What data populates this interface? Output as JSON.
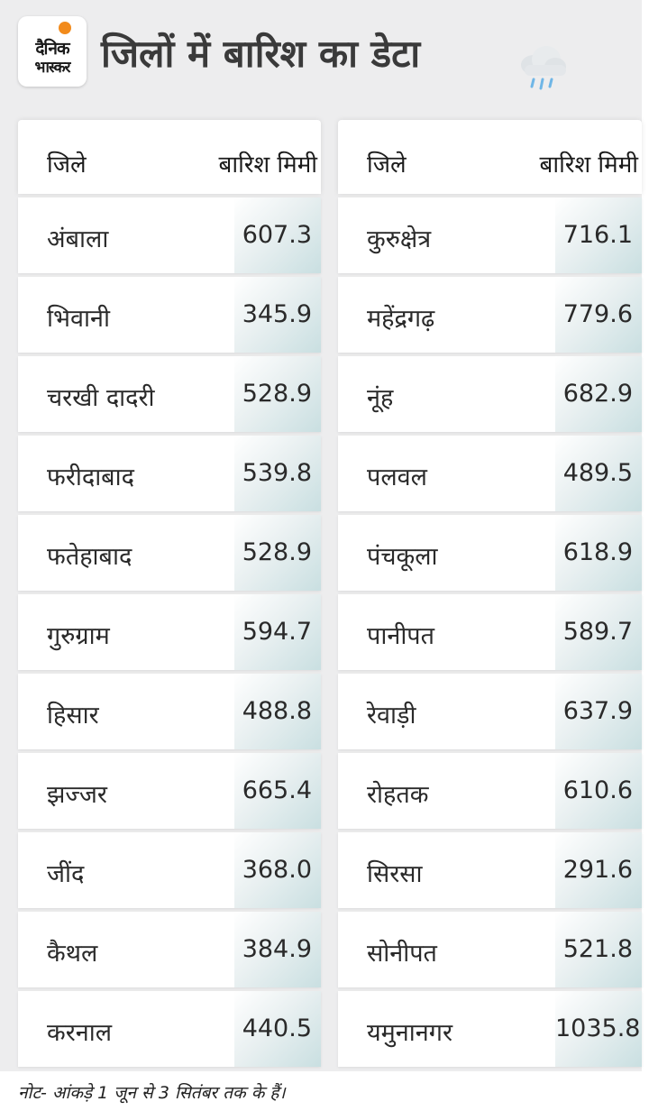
{
  "header": {
    "logo_line1": "दैनिक",
    "logo_line2": "भास्कर",
    "title": "जिलों में बारिश का डेटा",
    "icon": "rain-cloud-icon"
  },
  "colors": {
    "background": "#ededee",
    "row": "#ffffff",
    "value_cell_gradient_end": "#c9dfe1",
    "logo_sun": "#f28b1c"
  },
  "table": {
    "columns": [
      "जिले",
      "बारिश मिमी"
    ],
    "left": [
      {
        "district": "अंबाला",
        "rain": "607.3"
      },
      {
        "district": "भिवानी",
        "rain": "345.9"
      },
      {
        "district": "चरखी दादरी",
        "rain": "528.9"
      },
      {
        "district": "फरीदाबाद",
        "rain": "539.8"
      },
      {
        "district": "फतेहाबाद",
        "rain": "528.9"
      },
      {
        "district": "गुरुग्राम",
        "rain": "594.7"
      },
      {
        "district": "हिसार",
        "rain": "488.8"
      },
      {
        "district": "झज्जर",
        "rain": "665.4"
      },
      {
        "district": "जींद",
        "rain": "368.0"
      },
      {
        "district": "कैथल",
        "rain": "384.9"
      },
      {
        "district": "करनाल",
        "rain": "440.5"
      }
    ],
    "right": [
      {
        "district": "कुरुक्षेत्र",
        "rain": "716.1"
      },
      {
        "district": "महेंद्रगढ़",
        "rain": "779.6"
      },
      {
        "district": "नूंह",
        "rain": "682.9"
      },
      {
        "district": "पलवल",
        "rain": "489.5"
      },
      {
        "district": "पंचकूला",
        "rain": "618.9"
      },
      {
        "district": "पानीपत",
        "rain": "589.7"
      },
      {
        "district": "रेवाड़ी",
        "rain": "637.9"
      },
      {
        "district": "रोहतक",
        "rain": "610.6"
      },
      {
        "district": "सिरसा",
        "rain": "291.6"
      },
      {
        "district": "सोनीपत",
        "rain": "521.8"
      },
      {
        "district": "यमुनानगर",
        "rain": "1035.8"
      }
    ]
  },
  "note": "नोट- आंकड़े 1 जून से 3 सितंबर तक के हैं।"
}
